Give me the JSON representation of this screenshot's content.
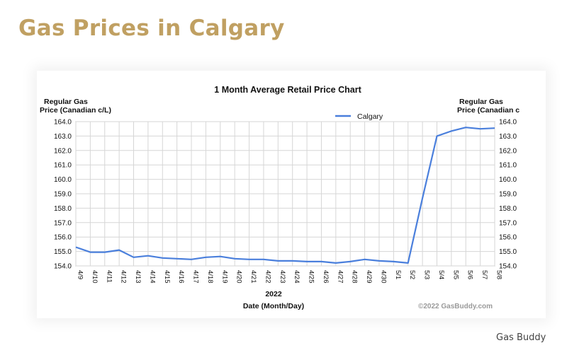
{
  "page": {
    "title": "Gas Prices in Calgary",
    "footer_brand": "Gas Buddy"
  },
  "colors": {
    "title_gold": "#c0a062",
    "series_line": "#4a7fdc",
    "grid": "#d6d6d6",
    "text": "#111111",
    "copyright": "#9a9a9a"
  },
  "chart_data": {
    "type": "line",
    "title": "1 Month Average Retail Price Chart",
    "ylabel_left": [
      "Regular Gas",
      "Price (Canadian c/L)"
    ],
    "ylabel_right": [
      "Regular Gas",
      "Price (Canadian c"
    ],
    "xlabel_year": "2022",
    "xlabel": "Date (Month/Day)",
    "copyright": "©2022 GasBuddy.com",
    "ylim": [
      154.0,
      164.0
    ],
    "yticks": [
      "154.0",
      "155.0",
      "156.0",
      "157.0",
      "158.0",
      "159.0",
      "160.0",
      "161.0",
      "162.0",
      "163.0",
      "164.0"
    ],
    "categories": [
      "4/9",
      "4/10",
      "4/11",
      "4/12",
      "4/13",
      "4/14",
      "4/15",
      "4/16",
      "4/17",
      "4/18",
      "4/19",
      "4/20",
      "4/21",
      "4/22",
      "4/23",
      "4/24",
      "4/25",
      "4/26",
      "4/27",
      "4/28",
      "4/29",
      "4/30",
      "5/1",
      "5/2",
      "5/3",
      "5/4",
      "5/5",
      "5/6",
      "5/7",
      "5/8"
    ],
    "grid": true,
    "legend_position": "top-right",
    "series": [
      {
        "name": "Calgary",
        "values": [
          155.3,
          154.95,
          154.95,
          155.1,
          154.6,
          154.7,
          154.55,
          154.5,
          154.45,
          154.6,
          154.65,
          154.5,
          154.45,
          154.45,
          154.35,
          154.35,
          154.3,
          154.3,
          154.2,
          154.3,
          154.45,
          154.35,
          154.3,
          154.2,
          158.7,
          163.0,
          163.35,
          163.6,
          163.5,
          163.55
        ]
      }
    ]
  }
}
